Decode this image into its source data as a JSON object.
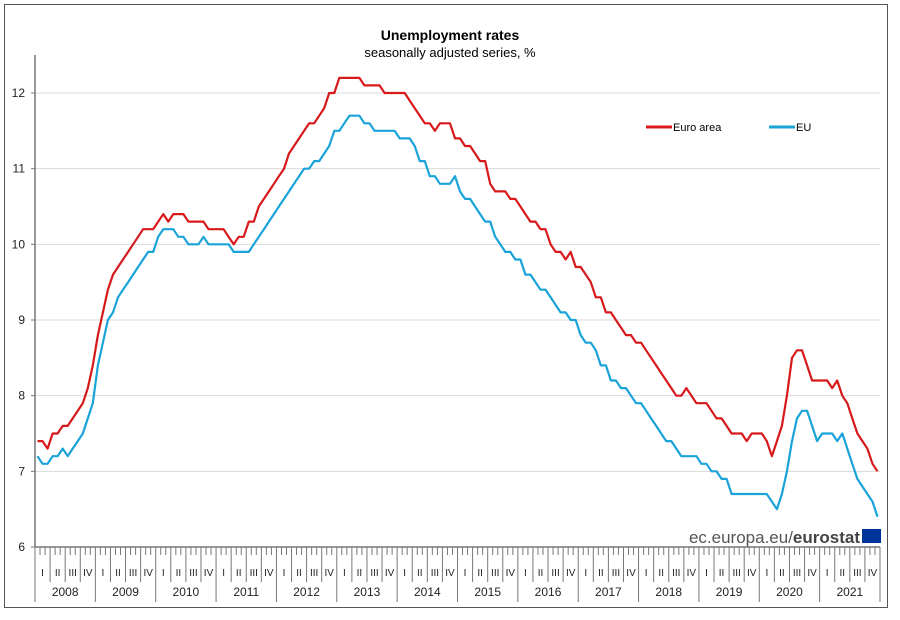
{
  "chart_data": {
    "type": "line",
    "title": "Unemployment rates",
    "subtitle": "seasonally adjusted series, %",
    "frequency": "monthly",
    "x_start": "2008-01",
    "years": [
      "2008",
      "2009",
      "2010",
      "2011",
      "2012",
      "2013",
      "2014",
      "2015",
      "2016",
      "2017",
      "2018",
      "2019",
      "2020",
      "2021"
    ],
    "quarter_labels": [
      "I",
      "II",
      "III",
      "IV"
    ],
    "ylim": [
      6,
      12.5
    ],
    "yticks": [
      6,
      7,
      8,
      9,
      10,
      11,
      12
    ],
    "grid": true,
    "legend_placement": "top-right",
    "series": [
      {
        "name": "Euro area",
        "color": "#d7191c",
        "values": [
          7.4,
          7.4,
          7.3,
          7.5,
          7.5,
          7.6,
          7.6,
          7.7,
          7.8,
          7.9,
          8.1,
          8.4,
          8.8,
          9.1,
          9.4,
          9.6,
          9.7,
          9.8,
          9.9,
          10.0,
          10.1,
          10.2,
          10.2,
          10.2,
          10.3,
          10.4,
          10.3,
          10.4,
          10.4,
          10.4,
          10.3,
          10.3,
          10.3,
          10.3,
          10.2,
          10.2,
          10.2,
          10.2,
          10.1,
          10.0,
          10.1,
          10.1,
          10.3,
          10.3,
          10.5,
          10.6,
          10.7,
          10.8,
          10.9,
          11.0,
          11.2,
          11.3,
          11.4,
          11.5,
          11.6,
          11.6,
          11.7,
          11.8,
          12.0,
          12.0,
          12.2,
          12.2,
          12.2,
          12.2,
          12.2,
          12.1,
          12.1,
          12.1,
          12.1,
          12.0,
          12.0,
          12.0,
          12.0,
          12.0,
          11.9,
          11.8,
          11.7,
          11.6,
          11.6,
          11.5,
          11.6,
          11.6,
          11.6,
          11.4,
          11.4,
          11.3,
          11.3,
          11.2,
          11.1,
          11.1,
          10.8,
          10.7,
          10.7,
          10.7,
          10.6,
          10.6,
          10.5,
          10.4,
          10.3,
          10.3,
          10.2,
          10.2,
          10.0,
          9.9,
          9.9,
          9.8,
          9.9,
          9.7,
          9.7,
          9.6,
          9.5,
          9.3,
          9.3,
          9.1,
          9.1,
          9.0,
          8.9,
          8.8,
          8.8,
          8.7,
          8.7,
          8.6,
          8.5,
          8.4,
          8.3,
          8.2,
          8.1,
          8.0,
          8.0,
          8.1,
          8.0,
          7.9,
          7.9,
          7.9,
          7.8,
          7.7,
          7.7,
          7.6,
          7.5,
          7.5,
          7.5,
          7.4,
          7.5,
          7.5,
          7.5,
          7.4,
          7.2,
          7.4,
          7.6,
          8.0,
          8.5,
          8.6,
          8.6,
          8.4,
          8.2,
          8.2,
          8.2,
          8.2,
          8.1,
          8.2,
          8.0,
          7.9,
          7.7,
          7.5,
          7.4,
          7.3,
          7.1,
          7.0
        ]
      },
      {
        "name": "EU",
        "color": "#1aa3d9",
        "values": [
          7.2,
          7.1,
          7.1,
          7.2,
          7.2,
          7.3,
          7.2,
          7.3,
          7.4,
          7.5,
          7.7,
          7.9,
          8.4,
          8.7,
          9.0,
          9.1,
          9.3,
          9.4,
          9.5,
          9.6,
          9.7,
          9.8,
          9.9,
          9.9,
          10.1,
          10.2,
          10.2,
          10.2,
          10.1,
          10.1,
          10.0,
          10.0,
          10.0,
          10.1,
          10.0,
          10.0,
          10.0,
          10.0,
          10.0,
          9.9,
          9.9,
          9.9,
          9.9,
          10.0,
          10.1,
          10.2,
          10.3,
          10.4,
          10.5,
          10.6,
          10.7,
          10.8,
          10.9,
          11.0,
          11.0,
          11.1,
          11.1,
          11.2,
          11.3,
          11.5,
          11.5,
          11.6,
          11.7,
          11.7,
          11.7,
          11.6,
          11.6,
          11.5,
          11.5,
          11.5,
          11.5,
          11.5,
          11.4,
          11.4,
          11.4,
          11.3,
          11.1,
          11.1,
          10.9,
          10.9,
          10.8,
          10.8,
          10.8,
          10.9,
          10.7,
          10.6,
          10.6,
          10.5,
          10.4,
          10.3,
          10.3,
          10.1,
          10.0,
          9.9,
          9.9,
          9.8,
          9.8,
          9.6,
          9.6,
          9.5,
          9.4,
          9.4,
          9.3,
          9.2,
          9.1,
          9.1,
          9.0,
          9.0,
          8.8,
          8.7,
          8.7,
          8.6,
          8.4,
          8.4,
          8.2,
          8.2,
          8.1,
          8.1,
          8.0,
          7.9,
          7.9,
          7.8,
          7.7,
          7.6,
          7.5,
          7.4,
          7.4,
          7.3,
          7.2,
          7.2,
          7.2,
          7.2,
          7.1,
          7.1,
          7.0,
          7.0,
          6.9,
          6.9,
          6.7,
          6.7,
          6.7,
          6.7,
          6.7,
          6.7,
          6.7,
          6.7,
          6.6,
          6.5,
          6.7,
          7.0,
          7.4,
          7.7,
          7.8,
          7.8,
          7.6,
          7.4,
          7.5,
          7.5,
          7.5,
          7.4,
          7.5,
          7.3,
          7.1,
          6.9,
          6.8,
          6.7,
          6.6,
          6.4
        ]
      }
    ]
  },
  "source": {
    "prefix": "ec.europa.eu/",
    "brand": "eurostat",
    "flag_color": "#003399"
  }
}
